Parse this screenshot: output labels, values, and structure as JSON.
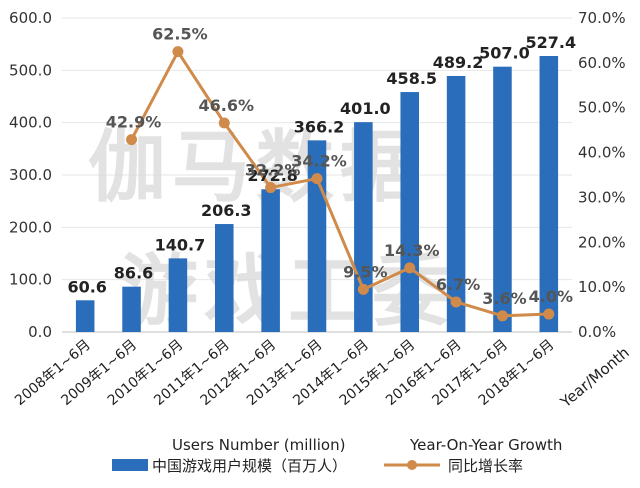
{
  "chart_data": {
    "type": "bar",
    "categories": [
      "2008年1~6月",
      "2009年1~6月",
      "2010年1~6月",
      "2011年1~6月",
      "2012年1~6月",
      "2013年1~6月",
      "2014年1~6月",
      "2015年1~6月",
      "2016年1~6月",
      "2017年1~6月",
      "2018年1~6月"
    ],
    "series": [
      {
        "name": "中国游戏用户规模（百万人）",
        "type": "bar",
        "axis": "left",
        "values": [
          60.6,
          86.6,
          140.7,
          206.3,
          272.8,
          366.2,
          401.0,
          458.5,
          489.2,
          507.0,
          527.4
        ],
        "labels": [
          "60.6",
          "86.6",
          "140.7",
          "206.3",
          "272.8",
          "366.2",
          "401.0",
          "458.5",
          "489.2",
          "507.0",
          "527.4"
        ]
      },
      {
        "name": "同比增长率",
        "type": "line",
        "axis": "right",
        "values": [
          null,
          42.9,
          62.5,
          46.6,
          32.2,
          34.2,
          9.5,
          14.3,
          6.7,
          3.6,
          4.0
        ],
        "labels": [
          null,
          "42.9%",
          "62.5%",
          "46.6%",
          "32.2%",
          "34.2%",
          "9.5%",
          "14.3%",
          "6.7%",
          "3.6%",
          "4.0%"
        ]
      }
    ],
    "ylim_left": [
      0,
      600
    ],
    "ylim_right": [
      0,
      70
    ],
    "yticks_left": [
      "0.0",
      "100.0",
      "200.0",
      "300.0",
      "400.0",
      "500.0",
      "600.0"
    ],
    "yticks_right": [
      "0.0%",
      "10.0%",
      "20.0%",
      "30.0%",
      "40.0%",
      "50.0%",
      "60.0%",
      "70.0%"
    ],
    "xlabel": "Year/Month",
    "legend_en": [
      "Users Number (million)",
      "Year-On-Year Growth"
    ],
    "legend_position": "bottom",
    "colors": {
      "bar": "#2a6ebb",
      "line": "#d08a4a",
      "grid": "#e6e6e6"
    },
    "watermark": "伽马数据 游戏工委"
  }
}
